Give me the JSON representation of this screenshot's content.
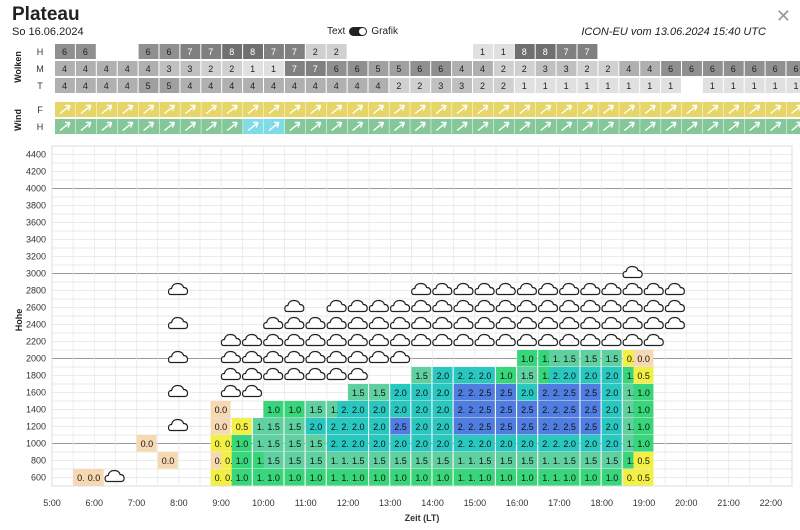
{
  "header": {
    "title": "Plateau",
    "date": "So 16.06.2024",
    "toggle_left": "Text",
    "toggle_right": "Grafik",
    "model": "ICON-EU vom 13.06.2024 15:40 UTC"
  },
  "clouds": {
    "label": "Wolken",
    "rows": [
      {
        "label": "H",
        "values": [
          "6",
          "6",
          "",
          "",
          "6",
          "6",
          "7",
          "7",
          "8",
          "8",
          "7",
          "7",
          "2",
          "2",
          "",
          "",
          "",
          "",
          "",
          "",
          "1",
          "1",
          "8",
          "8",
          "7",
          "7",
          "",
          "",
          "",
          "",
          "",
          "",
          "",
          "",
          "",
          "",
          ""
        ]
      },
      {
        "label": "M",
        "values": [
          "4",
          "4",
          "4",
          "4",
          "4",
          "3",
          "3",
          "2",
          "2",
          "1",
          "1",
          "7",
          "7",
          "6",
          "6",
          "5",
          "5",
          "6",
          "6",
          "4",
          "4",
          "2",
          "2",
          "3",
          "3",
          "2",
          "2",
          "4",
          "4",
          "6",
          "6",
          "6",
          "6",
          "6",
          "6",
          "6",
          "6"
        ]
      },
      {
        "label": "T",
        "values": [
          "4",
          "4",
          "4",
          "4",
          "5",
          "5",
          "4",
          "4",
          "4",
          "4",
          "4",
          "4",
          "4",
          "4",
          "4",
          "4",
          "2",
          "2",
          "3",
          "3",
          "2",
          "2",
          "1",
          "1",
          "1",
          "1",
          "1",
          "1",
          "1",
          "1",
          "",
          "1",
          "1",
          "1",
          "1",
          "1",
          "1"
        ]
      }
    ]
  },
  "wind": {
    "label": "Wind",
    "rows": [
      {
        "label": "F",
        "color": "#e6d66a"
      },
      {
        "label": "H",
        "color": "#86c79a"
      }
    ],
    "highlight_color": "#7fdbe6"
  },
  "chart_data": {
    "type": "heatmap",
    "x_label": "Zeit (LT)",
    "y_label": "Hohe",
    "x_ticks": [
      "5:00",
      "6:00",
      "7:00",
      "8:00",
      "9:00",
      "10:00",
      "11:00",
      "12:00",
      "13:00",
      "14:00",
      "15:00",
      "16:00",
      "17:00",
      "18:00",
      "19:00",
      "20:00",
      "21:00",
      "22:00"
    ],
    "y_ticks": [
      600,
      800,
      1000,
      1200,
      1400,
      1600,
      1800,
      2000,
      2200,
      2400,
      2600,
      2800,
      3000,
      3200,
      3400,
      3600,
      3800,
      4000,
      4200,
      4400
    ],
    "ylim": [
      500,
      4500
    ],
    "xlim": [
      5,
      22.5
    ],
    "cell_height_m": 200,
    "columns": [
      {
        "t": 5.5,
        "cells": [
          [
            600,
            "0.0"
          ]
        ]
      },
      {
        "t": 5.75,
        "cells": [
          [
            600,
            "0.0"
          ]
        ]
      },
      {
        "t": 7.0,
        "cells": [
          [
            1000,
            "0.0"
          ]
        ]
      },
      {
        "t": 7.5,
        "cells": [
          [
            800,
            "0.0"
          ]
        ]
      },
      {
        "t": 8.75,
        "cells": [
          [
            600,
            "0.5"
          ],
          [
            800,
            "0.0"
          ],
          [
            1000,
            "0.5"
          ],
          [
            1200,
            "0.0"
          ],
          [
            1400,
            "0.0"
          ]
        ]
      },
      {
        "t": 9.0,
        "cells": [
          [
            600,
            "0.5"
          ],
          [
            800,
            "0.5"
          ],
          [
            1000,
            "0.5"
          ]
        ]
      },
      {
        "t": 9.25,
        "cells": [
          [
            600,
            "1.0"
          ],
          [
            800,
            "1.0"
          ],
          [
            1000,
            "1.0"
          ],
          [
            1200,
            "0.5"
          ]
        ]
      },
      {
        "t": 9.75,
        "cells": [
          [
            600,
            "1.0"
          ],
          [
            800,
            "1.0"
          ],
          [
            1000,
            "1.5"
          ],
          [
            1200,
            "1.5"
          ]
        ]
      },
      {
        "t": 10.0,
        "cells": [
          [
            600,
            "1.0"
          ],
          [
            800,
            "1.5"
          ],
          [
            1000,
            "1.5"
          ],
          [
            1200,
            "1.5"
          ],
          [
            1400,
            "1.0"
          ]
        ]
      },
      {
        "t": 10.5,
        "cells": [
          [
            600,
            "1.0"
          ],
          [
            800,
            "1.5"
          ],
          [
            1000,
            "1.5"
          ],
          [
            1200,
            "1.5"
          ],
          [
            1400,
            "1.0"
          ]
        ]
      },
      {
        "t": 11.0,
        "cells": [
          [
            600,
            "1.0"
          ],
          [
            800,
            "1.5"
          ],
          [
            1000,
            "1.5"
          ],
          [
            1200,
            "2.0"
          ],
          [
            1400,
            "1.5"
          ]
        ]
      },
      {
        "t": 11.5,
        "cells": [
          [
            600,
            "1.0"
          ],
          [
            800,
            "1.5"
          ],
          [
            1000,
            "2.0"
          ],
          [
            1200,
            "2.0"
          ],
          [
            1400,
            "1.5"
          ]
        ]
      },
      {
        "t": 11.75,
        "cells": [
          [
            600,
            "1.0"
          ],
          [
            800,
            "1.5"
          ],
          [
            1000,
            "2.0"
          ],
          [
            1200,
            "2.0"
          ],
          [
            1400,
            "2.0"
          ]
        ]
      },
      {
        "t": 12.0,
        "cells": [
          [
            600,
            "1.0"
          ],
          [
            800,
            "1.5"
          ],
          [
            1000,
            "2.0"
          ],
          [
            1200,
            "2.0"
          ],
          [
            1400,
            "2.0"
          ],
          [
            1600,
            "1.5"
          ]
        ]
      },
      {
        "t": 12.5,
        "cells": [
          [
            600,
            "1.0"
          ],
          [
            800,
            "1.5"
          ],
          [
            1000,
            "2.0"
          ],
          [
            1200,
            "2.0"
          ],
          [
            1400,
            "2.0"
          ],
          [
            1600,
            "1.5"
          ]
        ]
      },
      {
        "t": 13.0,
        "cells": [
          [
            600,
            "1.0"
          ],
          [
            800,
            "1.5"
          ],
          [
            1000,
            "2.0"
          ],
          [
            1200,
            "2.5"
          ],
          [
            1400,
            "2.0"
          ],
          [
            1600,
            "2.0"
          ]
        ]
      },
      {
        "t": 13.5,
        "cells": [
          [
            600,
            "1.0"
          ],
          [
            800,
            "1.5"
          ],
          [
            1000,
            "2.0"
          ],
          [
            1200,
            "2.0"
          ],
          [
            1400,
            "2.0"
          ],
          [
            1600,
            "2.0"
          ],
          [
            1800,
            "1.5"
          ]
        ]
      },
      {
        "t": 14.0,
        "cells": [
          [
            600,
            "1.0"
          ],
          [
            800,
            "1.5"
          ],
          [
            1000,
            "2.0"
          ],
          [
            1200,
            "2.0"
          ],
          [
            1400,
            "2.0"
          ],
          [
            1600,
            "2.0"
          ],
          [
            1800,
            "2.0"
          ]
        ]
      },
      {
        "t": 14.5,
        "cells": [
          [
            600,
            "1.0"
          ],
          [
            800,
            "1.5"
          ],
          [
            1000,
            "2.0"
          ],
          [
            1200,
            "2.5"
          ],
          [
            1400,
            "2.5"
          ],
          [
            1600,
            "2.5"
          ],
          [
            1800,
            "2.0"
          ]
        ]
      },
      {
        "t": 14.75,
        "cells": [
          [
            600,
            "1.0"
          ],
          [
            800,
            "1.5"
          ],
          [
            1000,
            "2.0"
          ],
          [
            1200,
            "2.5"
          ],
          [
            1400,
            "2.5"
          ],
          [
            1600,
            "2.5"
          ],
          [
            1800,
            "2.0"
          ]
        ]
      },
      {
        "t": 15.0,
        "cells": [
          [
            600,
            "1.0"
          ],
          [
            800,
            "1.5"
          ],
          [
            1000,
            "2.0"
          ],
          [
            1200,
            "2.5"
          ],
          [
            1400,
            "2.5"
          ],
          [
            1600,
            "2.5"
          ],
          [
            1800,
            "2.0"
          ]
        ]
      },
      {
        "t": 15.5,
        "cells": [
          [
            600,
            "1.0"
          ],
          [
            800,
            "1.5"
          ],
          [
            1000,
            "2.0"
          ],
          [
            1200,
            "2.5"
          ],
          [
            1400,
            "2.5"
          ],
          [
            1600,
            "2.5"
          ],
          [
            1800,
            "1.0"
          ]
        ]
      },
      {
        "t": 16.0,
        "cells": [
          [
            600,
            "1.0"
          ],
          [
            800,
            "1.5"
          ],
          [
            1000,
            "2.0"
          ],
          [
            1200,
            "2.5"
          ],
          [
            1400,
            "2.5"
          ],
          [
            1600,
            "2.0"
          ],
          [
            1800,
            "1.5"
          ],
          [
            2000,
            "1.0"
          ]
        ]
      },
      {
        "t": 16.5,
        "cells": [
          [
            600,
            "1.0"
          ],
          [
            800,
            "1.5"
          ],
          [
            1000,
            "2.0"
          ],
          [
            1200,
            "2.5"
          ],
          [
            1400,
            "2.5"
          ],
          [
            1600,
            "2.5"
          ],
          [
            1800,
            "1.0"
          ],
          [
            2000,
            "1.0"
          ]
        ]
      },
      {
        "t": 16.75,
        "cells": [
          [
            600,
            "1.0"
          ],
          [
            800,
            "1.5"
          ],
          [
            1000,
            "2.0"
          ],
          [
            1200,
            "2.5"
          ],
          [
            1400,
            "2.5"
          ],
          [
            1600,
            "2.5"
          ],
          [
            1800,
            "2.0"
          ],
          [
            2000,
            "1.5"
          ]
        ]
      },
      {
        "t": 17.0,
        "cells": [
          [
            600,
            "1.0"
          ],
          [
            800,
            "1.5"
          ],
          [
            1000,
            "2.0"
          ],
          [
            1200,
            "2.5"
          ],
          [
            1400,
            "2.5"
          ],
          [
            1600,
            "2.5"
          ],
          [
            1800,
            "2.0"
          ],
          [
            2000,
            "1.5"
          ]
        ]
      },
      {
        "t": 17.5,
        "cells": [
          [
            600,
            "1.0"
          ],
          [
            800,
            "1.5"
          ],
          [
            1000,
            "2.0"
          ],
          [
            1200,
            "2.5"
          ],
          [
            1400,
            "2.5"
          ],
          [
            1600,
            "2.5"
          ],
          [
            1800,
            "2.0"
          ],
          [
            2000,
            "1.5"
          ]
        ]
      },
      {
        "t": 18.0,
        "cells": [
          [
            600,
            "1.0"
          ],
          [
            800,
            "1.5"
          ],
          [
            1000,
            "2.0"
          ],
          [
            1200,
            "2.0"
          ],
          [
            1400,
            "2.0"
          ],
          [
            1600,
            "2.0"
          ],
          [
            1800,
            "2.0"
          ],
          [
            2000,
            "1.5"
          ]
        ]
      },
      {
        "t": 18.5,
        "cells": [
          [
            600,
            "0.5"
          ],
          [
            800,
            "1.0"
          ],
          [
            1000,
            "1.5"
          ],
          [
            1200,
            "1.5"
          ],
          [
            1400,
            "1.5"
          ],
          [
            1600,
            "1.5"
          ],
          [
            1800,
            "1.0"
          ],
          [
            2000,
            "0.5"
          ]
        ]
      },
      {
        "t": 18.75,
        "cells": [
          [
            600,
            "0.5"
          ],
          [
            800,
            "0.5"
          ],
          [
            1000,
            "1.0"
          ],
          [
            1200,
            "1.0"
          ],
          [
            1400,
            "1.0"
          ],
          [
            1600,
            "1.0"
          ],
          [
            1800,
            "0.5"
          ],
          [
            2000,
            "0.0"
          ]
        ]
      }
    ],
    "cloud_symbols": [
      {
        "t": 6.25,
        "h": [
          600
        ]
      },
      {
        "t": 7.75,
        "h": [
          1200,
          1600,
          2000,
          2400,
          2800
        ]
      },
      {
        "t": 9.0,
        "h": [
          1600,
          1800,
          2000,
          2200
        ]
      },
      {
        "t": 9.5,
        "h": [
          1600,
          1800,
          2000,
          2200
        ]
      },
      {
        "t": 10.0,
        "h": [
          1800,
          2000,
          2200,
          2400
        ]
      },
      {
        "t": 10.5,
        "h": [
          1800,
          2000,
          2200,
          2400,
          2600
        ]
      },
      {
        "t": 11.0,
        "h": [
          1800,
          2000,
          2200,
          2400
        ]
      },
      {
        "t": 11.5,
        "h": [
          1800,
          2000,
          2200,
          2400,
          2600
        ]
      },
      {
        "t": 12.0,
        "h": [
          1800,
          2000,
          2200,
          2400,
          2600
        ]
      },
      {
        "t": 12.5,
        "h": [
          2000,
          2200,
          2400,
          2600
        ]
      },
      {
        "t": 13.0,
        "h": [
          2000,
          2200,
          2400,
          2600
        ]
      },
      {
        "t": 13.5,
        "h": [
          2200,
          2400,
          2600,
          2800
        ]
      },
      {
        "t": 14.0,
        "h": [
          2200,
          2400,
          2600,
          2800
        ]
      },
      {
        "t": 14.5,
        "h": [
          2200,
          2400,
          2600,
          2800
        ]
      },
      {
        "t": 15.0,
        "h": [
          2200,
          2400,
          2600,
          2800
        ]
      },
      {
        "t": 15.5,
        "h": [
          2200,
          2400,
          2600,
          2800
        ]
      },
      {
        "t": 16.0,
        "h": [
          2200,
          2400,
          2600,
          2800
        ]
      },
      {
        "t": 16.5,
        "h": [
          2200,
          2400,
          2600,
          2800
        ]
      },
      {
        "t": 17.0,
        "h": [
          2200,
          2400,
          2600,
          2800
        ]
      },
      {
        "t": 17.5,
        "h": [
          2200,
          2400,
          2600,
          2800
        ]
      },
      {
        "t": 18.0,
        "h": [
          2200,
          2400,
          2600,
          2800
        ]
      },
      {
        "t": 18.5,
        "h": [
          2200,
          2400,
          2600,
          2800,
          3000
        ]
      },
      {
        "t": 19.0,
        "h": [
          2200,
          2400,
          2600,
          2800
        ]
      },
      {
        "t": 19.5,
        "h": [
          2400,
          2600,
          2800
        ]
      }
    ],
    "color_scale": {
      "0.0": "#f6d9b3",
      "0.5": "#f2f044",
      "1.0": "#37d67a",
      "1.5": "#5fd0a0",
      "2.0": "#28c7c0",
      "2.5": "#4f7de0"
    }
  }
}
